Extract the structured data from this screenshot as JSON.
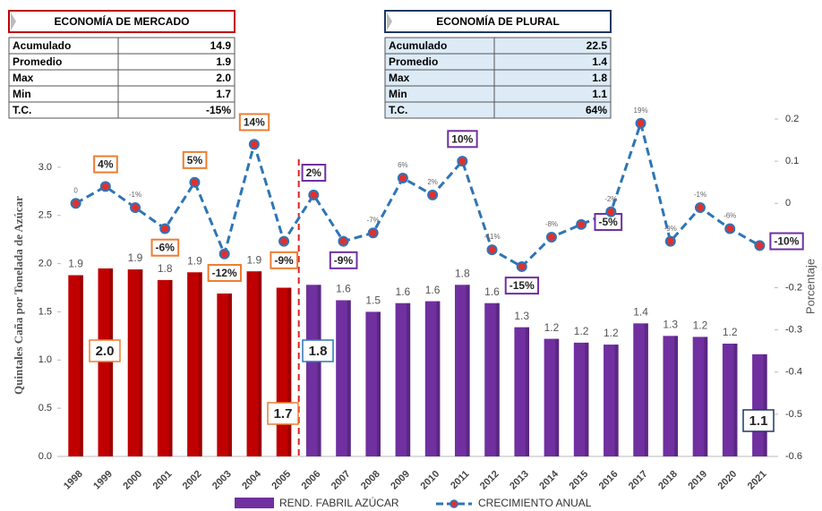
{
  "chart_data": {
    "type": "bar-line",
    "categories": [
      "1998",
      "1999",
      "2000",
      "2001",
      "2002",
      "2003",
      "2004",
      "2005",
      "2006",
      "2007",
      "2008",
      "2009",
      "2010",
      "2011",
      "2012",
      "2013",
      "2014",
      "2015",
      "2016",
      "2017",
      "2018",
      "2019",
      "2020",
      "2021"
    ],
    "series": [
      {
        "name": "REND. FABRIL AZÚCAR",
        "type": "bar",
        "color": "#7030a0",
        "bar_colors": [
          "#c00000",
          "#c00000",
          "#c00000",
          "#c00000",
          "#c00000",
          "#c00000",
          "#c00000",
          "#c00000",
          "#7030a0",
          "#7030a0",
          "#7030a0",
          "#7030a0",
          "#7030a0",
          "#7030a0",
          "#7030a0",
          "#7030a0",
          "#7030a0",
          "#7030a0",
          "#7030a0",
          "#7030a0",
          "#7030a0",
          "#7030a0",
          "#7030a0",
          "#7030a0"
        ],
        "values": [
          1.88,
          1.95,
          1.94,
          1.83,
          1.91,
          1.69,
          1.92,
          1.75,
          1.78,
          1.62,
          1.5,
          1.59,
          1.61,
          1.78,
          1.59,
          1.34,
          1.22,
          1.18,
          1.16,
          1.38,
          1.25,
          1.24,
          1.17,
          1.06
        ],
        "value_labels": [
          "1.9",
          null,
          "1.9",
          "1.8",
          "1.9",
          null,
          "1.9",
          null,
          null,
          "1.6",
          "1.5",
          "1.6",
          "1.6",
          "1.8",
          "1.6",
          "1.3",
          "1.2",
          "1.2",
          "1.2",
          "1.4",
          "1.3",
          "1.2",
          "1.2",
          null
        ]
      },
      {
        "name": "CRECIMIENTO ANUAL",
        "type": "line",
        "axis": "y2",
        "color": "#2e75b6",
        "marker_color": "#e03030",
        "values": [
          0,
          0.04,
          -0.01,
          -0.06,
          0.05,
          -0.12,
          0.14,
          -0.09,
          0.02,
          -0.09,
          -0.07,
          0.06,
          0.02,
          0.1,
          -0.11,
          -0.15,
          -0.08,
          -0.05,
          -0.02,
          0.19,
          -0.09,
          -0.01,
          -0.06,
          -0.1
        ],
        "value_labels": [
          "0",
          "4%",
          "-1%",
          "-6%",
          "5%",
          "-12%",
          "14%",
          "-9%",
          "2%",
          "-9%",
          "-7%",
          "6%",
          "2%",
          "10%",
          "-11%",
          "-15%",
          "-8%",
          "-5%",
          "-2%",
          "19%",
          "-9%",
          "-1%",
          "-6%",
          "-10%"
        ]
      }
    ],
    "ylabel": "Quintales Caña por Tonelada de Azúcar",
    "y2label": "Porcentaje",
    "ylim": [
      0,
      3.5
    ],
    "yticks": [
      {
        "value": 0,
        "label": "0.0"
      },
      {
        "value": 0.5,
        "label": "0.5"
      },
      {
        "value": 1,
        "label": "1.0"
      },
      {
        "value": 1.5,
        "label": "1.5"
      },
      {
        "value": 2,
        "label": "2.0"
      },
      {
        "value": 2.5,
        "label": "2.5"
      },
      {
        "value": 3,
        "label": "3.0"
      }
    ],
    "y2lim": [
      -0.6,
      0.2
    ],
    "y2ticks": [
      0.2,
      0.1,
      0,
      -0.1,
      -0.2,
      -0.3,
      -0.4,
      -0.5,
      -0.6
    ],
    "annotations": [
      "2.0",
      "1.8",
      "1.7",
      "1.1"
    ],
    "tables": [
      {
        "title": "ECONOMÍA DE MERCADO",
        "rows": [
          [
            "Acumulado",
            "14.9"
          ],
          [
            "Promedio",
            "1.9"
          ],
          [
            "Max",
            "2.0"
          ],
          [
            "Min",
            "1.7"
          ],
          [
            "T.C.",
            "-15%"
          ]
        ]
      },
      {
        "title": "ECONOMÍA DE PLURAL",
        "rows": [
          [
            "Acumulado",
            "22.5"
          ],
          [
            "Promedio",
            "1.4"
          ],
          [
            "Max",
            "1.8"
          ],
          [
            "Min",
            "1.1"
          ],
          [
            "T.C.",
            "64%"
          ]
        ]
      }
    ]
  }
}
